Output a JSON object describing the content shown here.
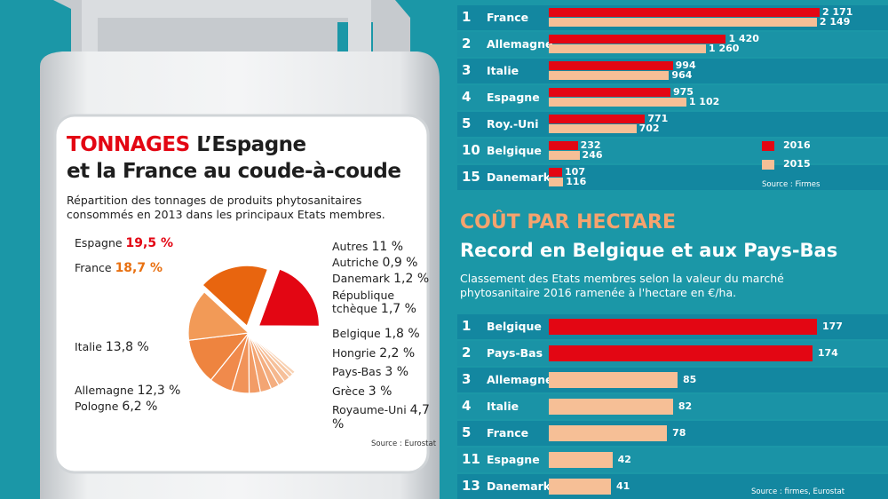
{
  "colors": {
    "red": "#e30613",
    "pale_orange": "#f6bf96",
    "bg_teal": "#1b97a7"
  },
  "pie": {
    "title_kw": "TONNAGES",
    "title_rest": " L’Espagne",
    "title_line2": "et la France au coude-à-coude",
    "subtitle": "Répartition des tonnages de produits phytosanitaires consommés en 2013 dans les principaux Etats membres.",
    "source": "Source : Eurostat"
  },
  "tonnage": {
    "legend_2016": "2016",
    "legend_2015": "2015",
    "source": "Source : Firmes"
  },
  "hectare": {
    "heading": "COÛT PAR HECTARE",
    "subheading": "Record en Belgique et aux Pays-Bas",
    "description": "Classement des Etats membres selon la valeur du marché phytosanitaire 2016 ramenée à l'hectare en €/ha.",
    "source": "Source : firmes, Eurostat"
  },
  "chart_data": [
    {
      "type": "pie",
      "title": "TONNAGES L’Espagne et la France au coude-à-coude",
      "slices": [
        {
          "label": "Espagne",
          "display": "19,5 %",
          "value": 19.5
        },
        {
          "label": "Autres",
          "display": "11 %",
          "value": 11
        },
        {
          "label": "Autriche",
          "display": "0,9 %",
          "value": 0.9
        },
        {
          "label": "Danemark",
          "display": "1,2 %",
          "value": 1.2
        },
        {
          "label": "République tchèque",
          "display": "1,7 %",
          "value": 1.7
        },
        {
          "label": "Belgique",
          "display": "1,8 %",
          "value": 1.8
        },
        {
          "label": "Hongrie",
          "display": "2,2 %",
          "value": 2.2
        },
        {
          "label": "Pays-Bas",
          "display": "3 %",
          "value": 3
        },
        {
          "label": "Grèce",
          "display": "3 %",
          "value": 3
        },
        {
          "label": "Royaume-Uni",
          "display": "4,7 %",
          "value": 4.7
        },
        {
          "label": "Pologne",
          "display": "6,2 %",
          "value": 6.2
        },
        {
          "label": "Allemagne",
          "display": "12,3 %",
          "value": 12.3
        },
        {
          "label": "Italie",
          "display": "13,8 %",
          "value": 13.8
        },
        {
          "label": "France",
          "display": "18,7 %",
          "value": 18.7
        }
      ]
    },
    {
      "type": "bar",
      "categories": [
        "France",
        "Allemagne",
        "Italie",
        "Espagne",
        "Roy.-Uni",
        "Belgique",
        "Danemark"
      ],
      "ranks": [
        "1",
        "2",
        "3",
        "4",
        "5",
        "10",
        "15"
      ],
      "series": [
        {
          "name": "2016",
          "values": [
            2171,
            1420,
            994,
            975,
            771,
            232,
            107
          ],
          "labels": [
            "2 171",
            "1 420",
            "994",
            "975",
            "771",
            "232",
            "107"
          ]
        },
        {
          "name": "2015",
          "values": [
            2149,
            1260,
            964,
            1102,
            702,
            246,
            116
          ],
          "labels": [
            "2 149",
            "1 260",
            "964",
            "1 102",
            "702",
            "246",
            "116"
          ]
        }
      ]
    },
    {
      "type": "bar",
      "title": "COÛT PAR HECTARE",
      "categories": [
        "Belgique",
        "Pays-Bas",
        "Allemagne",
        "Italie",
        "France",
        "Espagne",
        "Danemark"
      ],
      "ranks": [
        "1",
        "2",
        "3",
        "4",
        "5",
        "11",
        "13"
      ],
      "values": [
        177,
        174,
        85,
        82,
        78,
        42,
        41
      ]
    }
  ]
}
